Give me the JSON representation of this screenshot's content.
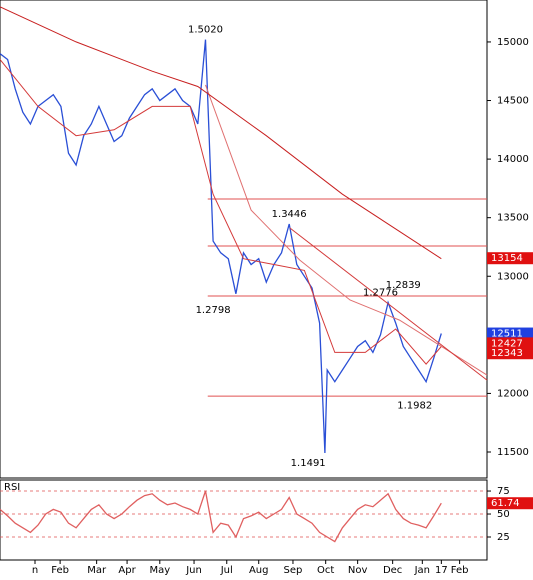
{
  "chart_data": [
    {
      "type": "line",
      "xlim": [
        0,
        64
      ],
      "ylim": [
        11278,
        15358
      ],
      "yticks": [
        11500,
        12000,
        12500,
        13000,
        13500,
        14000,
        14500,
        15000
      ],
      "xticks": [
        {
          "value": 4.6,
          "label": "n"
        },
        {
          "value": 7.9,
          "label": "Feb"
        },
        {
          "value": 12.7,
          "label": "Mar"
        },
        {
          "value": 16.7,
          "label": "Apr"
        },
        {
          "value": 21,
          "label": "May"
        },
        {
          "value": 25.5,
          "label": "Jun"
        },
        {
          "value": 29.8,
          "label": "Jul"
        },
        {
          "value": 34,
          "label": "Aug"
        },
        {
          "value": 38.5,
          "label": "Sep"
        },
        {
          "value": 42.8,
          "label": "Oct"
        },
        {
          "value": 47,
          "label": "Nov"
        },
        {
          "value": 51.6,
          "label": "Dec"
        },
        {
          "value": 55.5,
          "label": "Jan"
        },
        {
          "value": 58,
          "label": "17"
        },
        {
          "value": 60.4,
          "label": "Feb"
        }
      ],
      "series": [
        {
          "color": "#2a4fd6",
          "x": [
            0,
            1,
            2,
            3,
            4,
            5,
            6,
            7,
            8,
            9,
            10,
            11,
            12,
            13,
            14,
            15,
            16,
            17,
            18,
            19,
            20,
            21,
            22,
            23,
            24,
            25,
            26,
            27,
            28,
            29,
            30,
            31,
            32,
            33,
            34,
            35,
            36,
            37,
            38,
            39,
            40,
            41,
            42,
            42.7,
            43,
            44,
            45,
            46,
            47,
            48,
            49,
            50,
            51,
            52,
            53,
            54,
            55,
            56,
            57,
            58
          ],
          "values": [
            14900,
            14850,
            14600,
            14400,
            14300,
            14450,
            14500,
            14550,
            14450,
            14050,
            13950,
            14200,
            14300,
            14450,
            14300,
            14150,
            14200,
            14350,
            14450,
            14550,
            14600,
            14500,
            14550,
            14600,
            14500,
            14450,
            14300,
            15020,
            13300,
            13200,
            13150,
            12850,
            13200,
            13100,
            13150,
            12950,
            13100,
            13200,
            13446,
            13100,
            13000,
            12900,
            12600,
            11491,
            12200,
            12100,
            12200,
            12300,
            12400,
            12450,
            12350,
            12500,
            12776,
            12600,
            12400,
            12300,
            12200,
            12100,
            12300,
            12511
          ]
        },
        {
          "color": "#d43a3a",
          "x": [
            0,
            5,
            10,
            15,
            20,
            25,
            28,
            32,
            36,
            40,
            44,
            48,
            52,
            56,
            58
          ],
          "values": [
            14850,
            14450,
            14200,
            14250,
            14450,
            14450,
            13700,
            13150,
            13100,
            13050,
            12350,
            12350,
            12550,
            12250,
            12400
          ]
        },
        {
          "color": "#e07070",
          "x": [
            27,
            33,
            39.4,
            46,
            52.5,
            64
          ],
          "values": [
            14633,
            13565,
            13138,
            12797,
            12626,
            12156
          ]
        },
        {
          "color": "#c82020",
          "x": [
            0,
            10,
            20,
            26,
            35,
            45,
            58
          ],
          "values": [
            15300,
            15000,
            14750,
            14620,
            14200,
            13700,
            13150
          ]
        },
        {
          "color": "#d43a3a",
          "x": [
            38.1,
            64
          ],
          "values": [
            13412,
            12114
          ]
        }
      ],
      "levels": [
        13659,
        13258,
        12831,
        11977
      ],
      "level_start": 27.3,
      "level_color": "#e05050",
      "price_tags": [
        {
          "value": 13154,
          "color": "#e01010"
        },
        {
          "value": 12511,
          "color": "#2040e0"
        },
        {
          "value": 12427,
          "color": "#e01010"
        },
        {
          "value": 12343,
          "color": "#e01010"
        }
      ],
      "annotations": [
        {
          "text": "1.5020",
          "x": 27,
          "y": 15020,
          "pos": "above"
        },
        {
          "text": "1.3446",
          "x": 38,
          "y": 13446,
          "pos": "above"
        },
        {
          "text": "1.2839",
          "x": 53,
          "y": 12839,
          "pos": "above"
        },
        {
          "text": "1.2776",
          "x": 50,
          "y": 12776,
          "pos": "above"
        },
        {
          "text": "1.2798",
          "x": 28,
          "y": 12798,
          "pos": "below"
        },
        {
          "text": "1.1982",
          "x": 54.5,
          "y": 11982,
          "pos": "below"
        },
        {
          "text": "1.1491",
          "x": 40.5,
          "y": 11491,
          "pos": "below"
        }
      ]
    },
    {
      "type": "line",
      "title": "RSI",
      "xlim": [
        0,
        64
      ],
      "ylim": [
        0,
        87
      ],
      "yticks": [
        25,
        50,
        75
      ],
      "series": [
        {
          "color": "#e06060",
          "x": [
            0,
            1,
            2,
            3,
            4,
            5,
            6,
            7,
            8,
            9,
            10,
            11,
            12,
            13,
            14,
            15,
            16,
            17,
            18,
            19,
            20,
            21,
            22,
            23,
            24,
            25,
            26,
            27,
            28,
            29,
            30,
            31,
            32,
            33,
            34,
            35,
            36,
            37,
            38,
            39,
            40,
            41,
            42,
            43,
            44,
            45,
            46,
            47,
            48,
            49,
            50,
            51,
            52,
            53,
            54,
            55,
            56,
            57,
            58
          ],
          "values": [
            55,
            48,
            40,
            35,
            30,
            38,
            50,
            55,
            52,
            40,
            35,
            45,
            55,
            60,
            50,
            45,
            50,
            58,
            65,
            70,
            72,
            65,
            60,
            62,
            58,
            55,
            50,
            75,
            30,
            40,
            38,
            25,
            45,
            48,
            52,
            45,
            50,
            55,
            68,
            50,
            45,
            40,
            30,
            25,
            20,
            35,
            45,
            55,
            60,
            58,
            65,
            72,
            55,
            45,
            40,
            38,
            35,
            48,
            61.74
          ]
        }
      ],
      "price_tags": [
        {
          "value": 61.74,
          "color": "#e01010"
        }
      ]
    }
  ]
}
